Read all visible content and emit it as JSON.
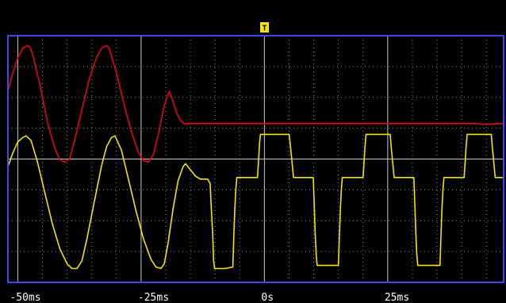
{
  "colors": {
    "background": "#000000",
    "frame": "#3f48e8",
    "grid_dots": "#8a8a8a",
    "grid_lines": "#c8c8c8",
    "channel_1": "#e8001c",
    "channel_2": "#f0e600",
    "trigger_marker": "#f0e600",
    "text": "#ffffff"
  },
  "trigger_marker": {
    "label": "T",
    "icon": "trigger-marker-icon"
  },
  "chart_data": {
    "type": "line",
    "xlim": [
      -52,
      48.5
    ],
    "ylim": [
      0,
      8
    ],
    "x_major_ticks": [
      -50,
      -25,
      0,
      25
    ],
    "x_tick_labels": [
      "-50ms",
      "-25ms",
      "0s",
      "25ms"
    ],
    "x_minor_step": 5,
    "y_minor_step": 1,
    "y_major_lines": [
      4
    ],
    "grid": "dotted",
    "series": [
      {
        "color": "#e8001c",
        "points": [
          [
            -52,
            6.2
          ],
          [
            -51,
            6.8
          ],
          [
            -50,
            7.28
          ],
          [
            -49,
            7.6
          ],
          [
            -48,
            7.68
          ],
          [
            -47.5,
            7.62
          ],
          [
            -47,
            7.4
          ],
          [
            -45.5,
            6.4
          ],
          [
            -44,
            5.2
          ],
          [
            -42.5,
            4.35
          ],
          [
            -41.5,
            3.98
          ],
          [
            -40.5,
            3.9
          ],
          [
            -39.5,
            4.0
          ],
          [
            -38.5,
            4.6
          ],
          [
            -37,
            5.6
          ],
          [
            -35.5,
            6.6
          ],
          [
            -34,
            7.3
          ],
          [
            -33,
            7.6
          ],
          [
            -32,
            7.68
          ],
          [
            -31.5,
            7.6
          ],
          [
            -30,
            6.8
          ],
          [
            -28.5,
            5.8
          ],
          [
            -27,
            4.9
          ],
          [
            -25.5,
            4.2
          ],
          [
            -24.5,
            3.95
          ],
          [
            -23.5,
            3.9
          ],
          [
            -22.5,
            4.15
          ],
          [
            -21.5,
            4.8
          ],
          [
            -20.5,
            5.6
          ],
          [
            -19.8,
            6.0
          ],
          [
            -19.3,
            6.2
          ],
          [
            -18.6,
            5.9
          ],
          [
            -17.8,
            5.5
          ],
          [
            -17,
            5.25
          ],
          [
            -16.3,
            5.15
          ],
          [
            -14,
            5.15
          ],
          [
            3,
            5.15
          ],
          [
            18,
            5.15
          ],
          [
            36,
            5.15
          ],
          [
            43,
            5.15
          ],
          [
            44,
            5.13
          ],
          [
            46,
            5.13
          ],
          [
            47,
            5.15
          ],
          [
            48.5,
            5.15
          ]
        ]
      },
      {
        "color": "#f0e600",
        "points": [
          [
            -52,
            3.75
          ],
          [
            -51,
            4.2
          ],
          [
            -50,
            4.55
          ],
          [
            -49,
            4.7
          ],
          [
            -48.3,
            4.75
          ],
          [
            -47.3,
            4.6
          ],
          [
            -46,
            3.9
          ],
          [
            -44.5,
            2.9
          ],
          [
            -43,
            1.9
          ],
          [
            -41.5,
            1.1
          ],
          [
            -40,
            0.6
          ],
          [
            -39,
            0.45
          ],
          [
            -38,
            0.45
          ],
          [
            -37,
            0.7
          ],
          [
            -36,
            1.4
          ],
          [
            -34.5,
            2.6
          ],
          [
            -33,
            3.8
          ],
          [
            -32,
            4.4
          ],
          [
            -31,
            4.7
          ],
          [
            -30.3,
            4.75
          ],
          [
            -29,
            4.3
          ],
          [
            -27.5,
            3.3
          ],
          [
            -26,
            2.3
          ],
          [
            -24.5,
            1.4
          ],
          [
            -23,
            0.75
          ],
          [
            -22,
            0.5
          ],
          [
            -21,
            0.45
          ],
          [
            -20.3,
            0.6
          ],
          [
            -19.5,
            1.3
          ],
          [
            -18.5,
            2.4
          ],
          [
            -17.5,
            3.3
          ],
          [
            -16.5,
            3.75
          ],
          [
            -16,
            3.85
          ],
          [
            -15,
            3.65
          ],
          [
            -14,
            3.45
          ],
          [
            -13,
            3.35
          ],
          [
            -11.5,
            3.35
          ],
          [
            -11,
            3.2
          ],
          [
            -10.8,
            2.5
          ],
          [
            -10.5,
            1.6
          ],
          [
            -10.3,
            0.7
          ],
          [
            -10.1,
            0.45
          ],
          [
            -8,
            0.45
          ],
          [
            -6.4,
            0.5
          ],
          [
            -6.2,
            1.5
          ],
          [
            -6.0,
            2.4
          ],
          [
            -5.8,
            3.0
          ],
          [
            -5.6,
            3.4
          ],
          [
            -1.4,
            3.4
          ],
          [
            -1.2,
            3.9
          ],
          [
            -1.0,
            4.5
          ],
          [
            -0.8,
            4.8
          ],
          [
            5.0,
            4.8
          ],
          [
            5.3,
            4.4
          ],
          [
            5.6,
            3.9
          ],
          [
            5.9,
            3.4
          ],
          [
            9.9,
            3.4
          ],
          [
            10.1,
            2.5
          ],
          [
            10.3,
            1.6
          ],
          [
            10.5,
            0.9
          ],
          [
            10.7,
            0.55
          ],
          [
            15.0,
            0.55
          ],
          [
            15.2,
            1.5
          ],
          [
            15.4,
            2.4
          ],
          [
            15.6,
            3.0
          ],
          [
            15.8,
            3.4
          ],
          [
            20.0,
            3.4
          ],
          [
            20.2,
            3.9
          ],
          [
            20.4,
            4.4
          ],
          [
            20.6,
            4.8
          ],
          [
            25.5,
            4.8
          ],
          [
            25.7,
            4.4
          ],
          [
            26.0,
            3.9
          ],
          [
            26.3,
            3.4
          ],
          [
            30.3,
            3.4
          ],
          [
            30.5,
            2.5
          ],
          [
            30.7,
            1.6
          ],
          [
            30.9,
            0.9
          ],
          [
            31.1,
            0.55
          ],
          [
            35.6,
            0.55
          ],
          [
            35.8,
            1.5
          ],
          [
            36.0,
            2.4
          ],
          [
            36.2,
            3.0
          ],
          [
            36.4,
            3.4
          ],
          [
            40.5,
            3.4
          ],
          [
            40.7,
            3.9
          ],
          [
            40.9,
            4.4
          ],
          [
            41.1,
            4.8
          ],
          [
            46.0,
            4.8
          ],
          [
            46.2,
            4.4
          ],
          [
            46.5,
            3.9
          ],
          [
            46.8,
            3.4
          ],
          [
            48.5,
            3.4
          ]
        ]
      }
    ]
  }
}
